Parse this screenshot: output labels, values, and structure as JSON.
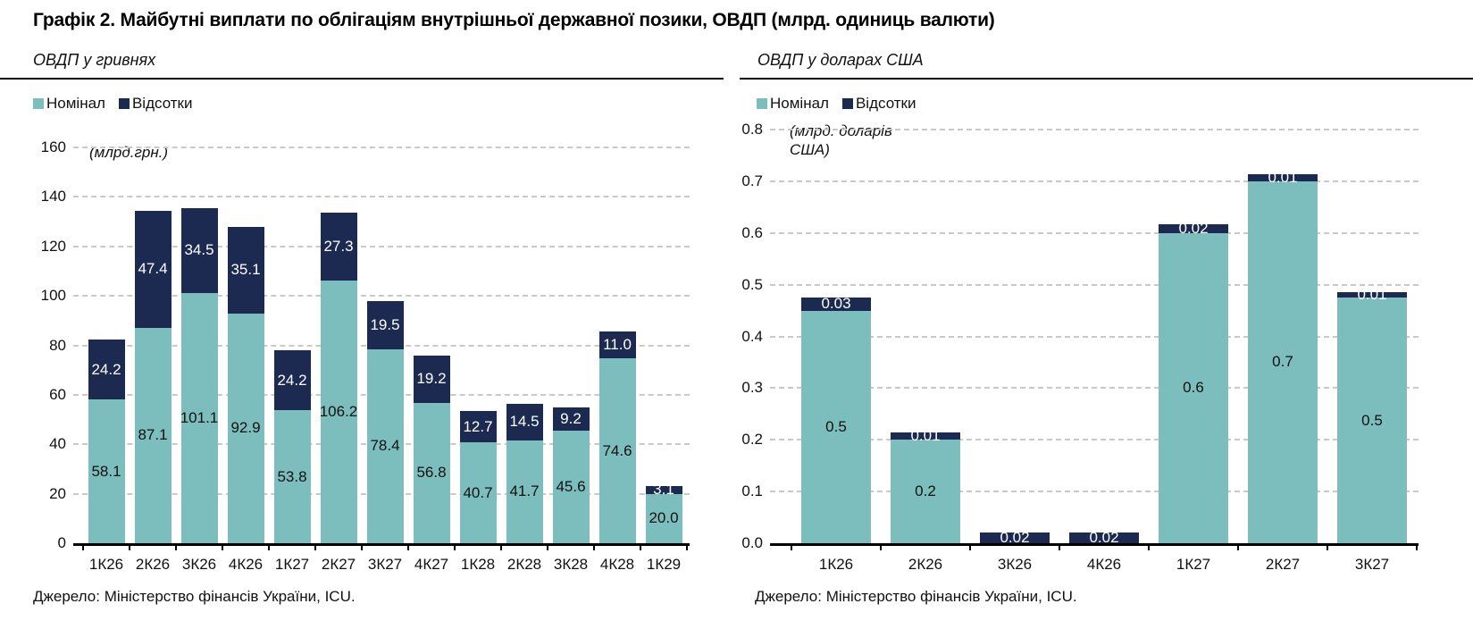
{
  "page_title": "Графік 2. Майбутні виплати по облігаціям внутрішньої державної позики, ОВДП (млрд. одиниць валюти)",
  "colors": {
    "nominal": "#7CBDBD",
    "interest": "#1C2A52",
    "grid": "#C9C9C9",
    "axis": "#000000",
    "text": "#111111"
  },
  "chart_data": [
    {
      "type": "bar",
      "stacked": true,
      "title": "ОВДП у гривнях",
      "unit_label": "(млрд.грн.)",
      "source": "Джерело: Міністерство фінансів України, ICU.",
      "legend_position": "top-left",
      "grid": "horizontal-dashed",
      "categories": [
        "1К26",
        "2К26",
        "3К26",
        "4К26",
        "1К27",
        "2К27",
        "3К27",
        "4К27",
        "1К28",
        "2К28",
        "3К28",
        "4К28",
        "1К29"
      ],
      "series": [
        {
          "name": "Номінал",
          "values": [
            58.1,
            87.1,
            101.1,
            92.9,
            53.8,
            106.2,
            78.4,
            56.8,
            40.7,
            41.7,
            45.6,
            74.6,
            20.0
          ],
          "labels": [
            "58.1",
            "87.1",
            "101.1",
            "92.9",
            "53.8",
            "106.2",
            "78.4",
            "56.8",
            "40.7",
            "41.7",
            "45.6",
            "74.6",
            "20.0"
          ]
        },
        {
          "name": "Відсотки",
          "values": [
            24.2,
            47.4,
            34.5,
            35.1,
            24.2,
            27.3,
            19.5,
            19.2,
            12.7,
            14.5,
            9.2,
            11.0,
            3.1
          ],
          "labels": [
            "24.2",
            "47.4",
            "34.5",
            "35.1",
            "24.2",
            "27.3",
            "19.5",
            "19.2",
            "12.7",
            "14.5",
            "9.2",
            "11.0",
            "3.1"
          ]
        }
      ],
      "ylim": [
        0,
        160
      ],
      "ytick_labels": [
        "0",
        "20",
        "40",
        "60",
        "80",
        "100",
        "120",
        "140",
        "160"
      ]
    },
    {
      "type": "bar",
      "stacked": true,
      "title": "ОВДП у доларах США",
      "unit_label": "(млрд. доларів\nСША)",
      "source": "Джерело: Міністерство фінансів України, ICU.",
      "legend_position": "top-left",
      "grid": "horizontal-dashed",
      "categories": [
        "1К26",
        "2К26",
        "3К26",
        "4К26",
        "1К27",
        "2К27",
        "3К27"
      ],
      "series": [
        {
          "name": "Номінал",
          "values": [
            0.45,
            0.2,
            0,
            0,
            0.6,
            0.7,
            0.475
          ],
          "labels": [
            "0.5",
            "0.2",
            "",
            "",
            "0.6",
            "0.7",
            "0.5"
          ]
        },
        {
          "name": "Відсотки",
          "values": [
            0.025,
            0.015,
            0.02,
            0.02,
            0.017,
            0.014,
            0.01
          ],
          "labels": [
            "0.03",
            "0.01",
            "0.02",
            "0.02",
            "0.02",
            "0.01",
            "0.01"
          ]
        }
      ],
      "ylim": [
        0,
        0.8
      ],
      "ytick_labels": [
        "0.0",
        "0.1",
        "0.2",
        "0.3",
        "0.4",
        "0.5",
        "0.6",
        "0.7",
        "0.8"
      ]
    }
  ]
}
